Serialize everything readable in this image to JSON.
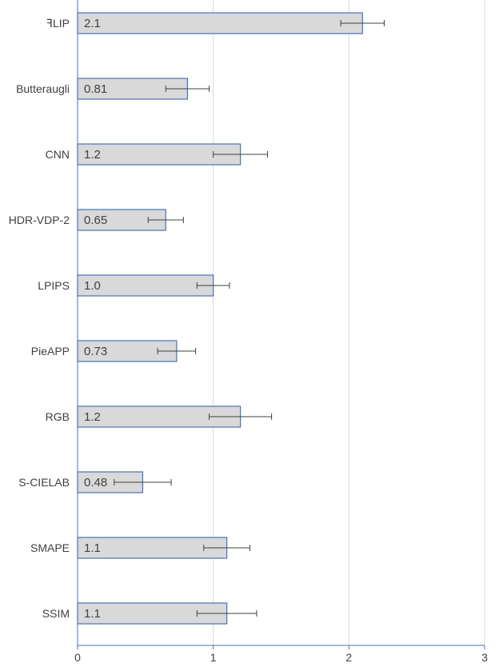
{
  "chart_data": {
    "type": "bar",
    "orientation": "horizontal",
    "categories": [
      "ꟻLIP",
      "Butteraugli",
      "CNN",
      "HDR-VDP-2",
      "LPIPS",
      "PieAPP",
      "RGB",
      "S-CIELAB",
      "SMAPE",
      "SSIM"
    ],
    "values": [
      2.1,
      0.81,
      1.2,
      0.65,
      1.0,
      0.73,
      1.2,
      0.48,
      1.1,
      1.1
    ],
    "value_labels": [
      "2.1",
      "0.81",
      "1.2",
      "0.65",
      "1.0",
      "0.73",
      "1.2",
      "0.48",
      "1.1",
      "1.1"
    ],
    "error_low": [
      1.94,
      0.65,
      1.0,
      0.52,
      0.88,
      0.59,
      0.97,
      0.27,
      0.93,
      0.88
    ],
    "error_high": [
      2.26,
      0.97,
      1.4,
      0.78,
      1.12,
      0.87,
      1.43,
      0.69,
      1.27,
      1.32
    ],
    "xlim": [
      0,
      3
    ],
    "xticks": [
      "0",
      "1",
      "2",
      "3"
    ],
    "title": "",
    "xlabel": "",
    "ylabel": "",
    "grid": "vertical",
    "legend": "none",
    "colors": {
      "bar_fill": "#d9d9d9",
      "bar_stroke": "#4472c4",
      "axis": "#4472c4",
      "grid": "#d9d9d9",
      "error_bar": "#404040",
      "text": "#404040"
    }
  }
}
